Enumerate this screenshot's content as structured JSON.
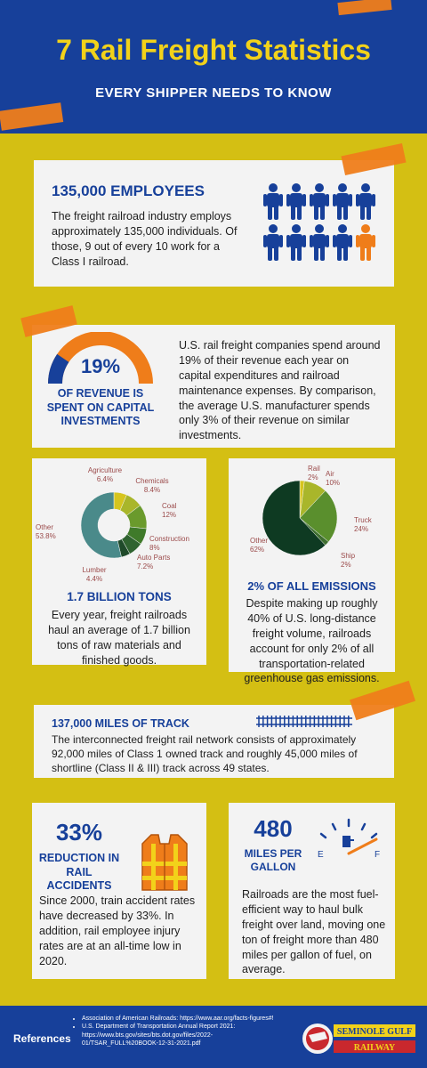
{
  "header": {
    "title": "7 Rail Freight Statistics",
    "subtitle": "EVERY SHIPPER NEEDS TO KNOW"
  },
  "employees": {
    "title": "135,000 EMPLOYEES",
    "text": "The freight railroad industry employs approximately 135,000 individuals. Of those, 9 out of every 10 work for a Class I railroad.",
    "highlight_count": 1,
    "total_count": 10
  },
  "revenue": {
    "percent": "19%",
    "label": "OF REVENUE IS SPENT ON CAPITAL INVESTMENTS",
    "text": "U.S. rail freight companies spend around 19% of their revenue each year on capital expenditures and railroad maintenance expenses. By comparison, the average U.S. manufacturer spends only 3% of their revenue on similar investments.",
    "gauge_fraction": 0.19
  },
  "tons": {
    "title": "1.7 BILLION TONS",
    "text": "Every year, freight railroads haul an average of 1.7 billion tons of raw materials and finished goods."
  },
  "emissions": {
    "title": "2% OF ALL EMISSIONS",
    "text": "Despite making up roughly 40% of U.S. long-distance freight volume, railroads account for only 2% of all transportation-related greenhouse gas emissions."
  },
  "chart_data": [
    {
      "type": "pie",
      "categories": [
        "Agriculture",
        "Chemicals",
        "Coal",
        "Construction",
        "Auto Parts",
        "Lumber",
        "Other"
      ],
      "values": [
        6.4,
        8.4,
        12,
        8,
        7.2,
        4.4,
        53.8
      ],
      "value_labels": [
        "6.4%",
        "8.4%",
        "12%",
        "8%",
        "7.2%",
        "4.4%",
        "53.8%"
      ],
      "colors": [
        "#d6c51e",
        "#a9b62a",
        "#6a9a2c",
        "#3f7a2a",
        "#2f6330",
        "#1f4a2a",
        "#4a8a8a"
      ]
    },
    {
      "type": "pie",
      "categories": [
        "Rail",
        "Air",
        "Truck",
        "Ship",
        "Other"
      ],
      "values": [
        2,
        10,
        24,
        2,
        62
      ],
      "value_labels": [
        "2%",
        "10%",
        "24%",
        "2%",
        "62%"
      ],
      "colors": [
        "#d6c51e",
        "#a9b62a",
        "#5a8f2d",
        "#3f6f30",
        "#0e3a22"
      ]
    }
  ],
  "track": {
    "title": "137,000 MILES OF TRACK",
    "text": "The interconnected freight rail network consists of approximately 92,000 miles of Class 1 owned track and roughly 45,000 miles of shortline (Class II & III) track across 49 states."
  },
  "accidents": {
    "percent": "33%",
    "label": "REDUCTION IN RAIL ACCIDENTS",
    "text": "Since 2000, train accident rates have decreased by 33%. In addition, rail employee injury rates are at an all-time low in 2020."
  },
  "mpg": {
    "value": "480",
    "label": "MILES PER GALLON",
    "gauge_e": "E",
    "gauge_f": "F",
    "text": "Railroads are the most fuel-efficient way to haul bulk freight over land, moving one ton of freight more than 480 miles per gallon of fuel, on average."
  },
  "references": {
    "title": "References",
    "items": [
      "Association of American Railroads: https://www.aar.org/facts-figures#!",
      "U.S. Department of Transportation Annual Report 2021: https://www.bts.gov/sites/bts.dot.gov/files/2022-01/TSAR_FULL%20BOOK-12-31-2021.pdf"
    ]
  },
  "logo": {
    "line1": "SEMINOLE GULF",
    "line2": "RAILWAY"
  },
  "colors": {
    "blue": "#17409a",
    "yellow": "#d4bf13",
    "orange": "#ef7d1a"
  }
}
